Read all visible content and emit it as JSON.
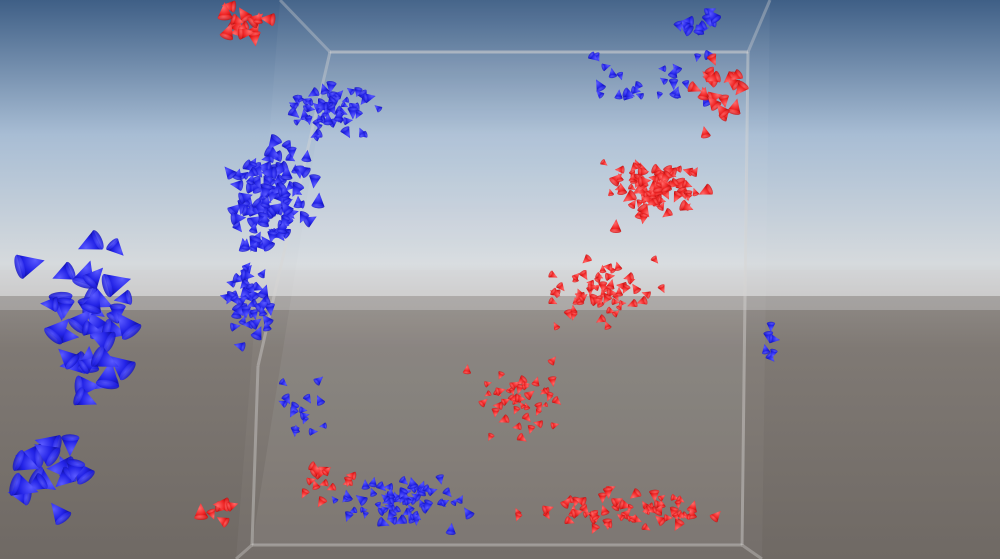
{
  "scene": {
    "type": "3D boids / flocking simulation viewport",
    "colors": {
      "sky_top": "#3f5f86",
      "sky_mid": "#b8c9dc",
      "horizon": "#d4d8dc",
      "ground_near": "#7a746f",
      "ground_far": "#8e8985",
      "box_edge": "#c9c6c4",
      "team_blue": "#2222e6",
      "team_blue_shade": "#0d0d8a",
      "team_red": "#ee2222",
      "team_red_shade": "#8a0d0d"
    },
    "teams": [
      {
        "name": "blue",
        "shape": "cone"
      },
      {
        "name": "red",
        "shape": "cone"
      }
    ]
  }
}
